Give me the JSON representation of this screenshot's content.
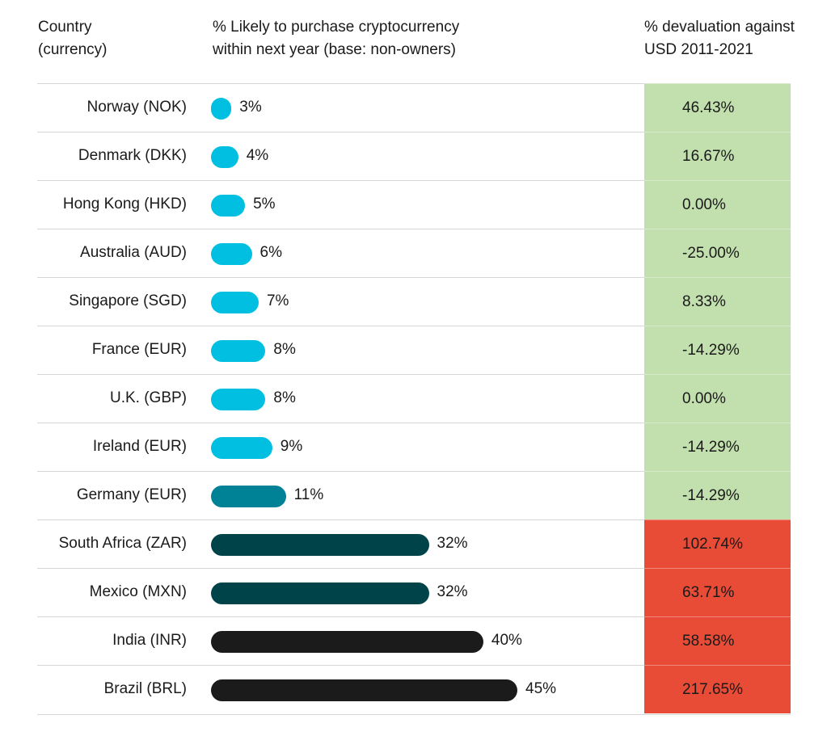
{
  "headers": {
    "country": [
      "Country",
      "(currency)"
    ],
    "likely": [
      "% Likely to purchase cryptocurrency",
      "within next year (base: non-owners)"
    ],
    "devaluation": [
      "% devaluation against",
      "USD 2011-2021"
    ]
  },
  "colors": {
    "bar_low": "#00BFE0",
    "bar_mid": "#008296",
    "bar_high": "#004449",
    "bar_top": "#1B1B1B",
    "cell_positive": "#C2DFAE",
    "cell_negative": "#E84B36"
  },
  "chart_data": {
    "type": "bar",
    "orientation": "horizontal",
    "title": "",
    "xlabel": "% Likely to purchase cryptocurrency within next year (base: non-owners)",
    "ylabel": "Country (currency)",
    "grid": false,
    "legend": "none",
    "xlim": [
      0,
      45
    ],
    "categories": [
      "Norway (NOK)",
      "Denmark (DKK)",
      "Hong Kong (HKD)",
      "Australia (AUD)",
      "Singapore (SGD)",
      "France (EUR)",
      "U.K. (GBP)",
      "Ireland (EUR)",
      "Germany (EUR)",
      "South Africa (ZAR)",
      "Mexico (MXN)",
      "India (INR)",
      "Brazil (BRL)"
    ],
    "series": [
      {
        "name": "% Likely to purchase cryptocurrency within next year",
        "values": [
          3,
          4,
          5,
          6,
          7,
          8,
          8,
          9,
          11,
          32,
          32,
          40,
          45
        ],
        "labels": [
          "3%",
          "4%",
          "5%",
          "6%",
          "7%",
          "8%",
          "8%",
          "9%",
          "11%",
          "32%",
          "32%",
          "40%",
          "45%"
        ],
        "color_group": [
          "low",
          "low",
          "low",
          "low",
          "low",
          "low",
          "low",
          "low",
          "mid",
          "high",
          "high",
          "top",
          "top"
        ]
      }
    ],
    "table_column": {
      "name": "% devaluation against USD 2011-2021",
      "values": [
        46.43,
        16.67,
        0.0,
        -25.0,
        8.33,
        -14.29,
        0.0,
        -14.29,
        -14.29,
        102.74,
        63.71,
        58.58,
        217.65
      ],
      "labels": [
        "46.43%",
        "16.67%",
        "0.00%",
        "-25.00%",
        "8.33%",
        "-14.29%",
        "0.00%",
        "-14.29%",
        "-14.29%",
        "102.74%",
        "63.71%",
        "58.58%",
        "217.65%"
      ],
      "status": [
        "positive",
        "positive",
        "positive",
        "positive",
        "positive",
        "positive",
        "positive",
        "positive",
        "positive",
        "negative",
        "negative",
        "negative",
        "negative"
      ]
    }
  }
}
